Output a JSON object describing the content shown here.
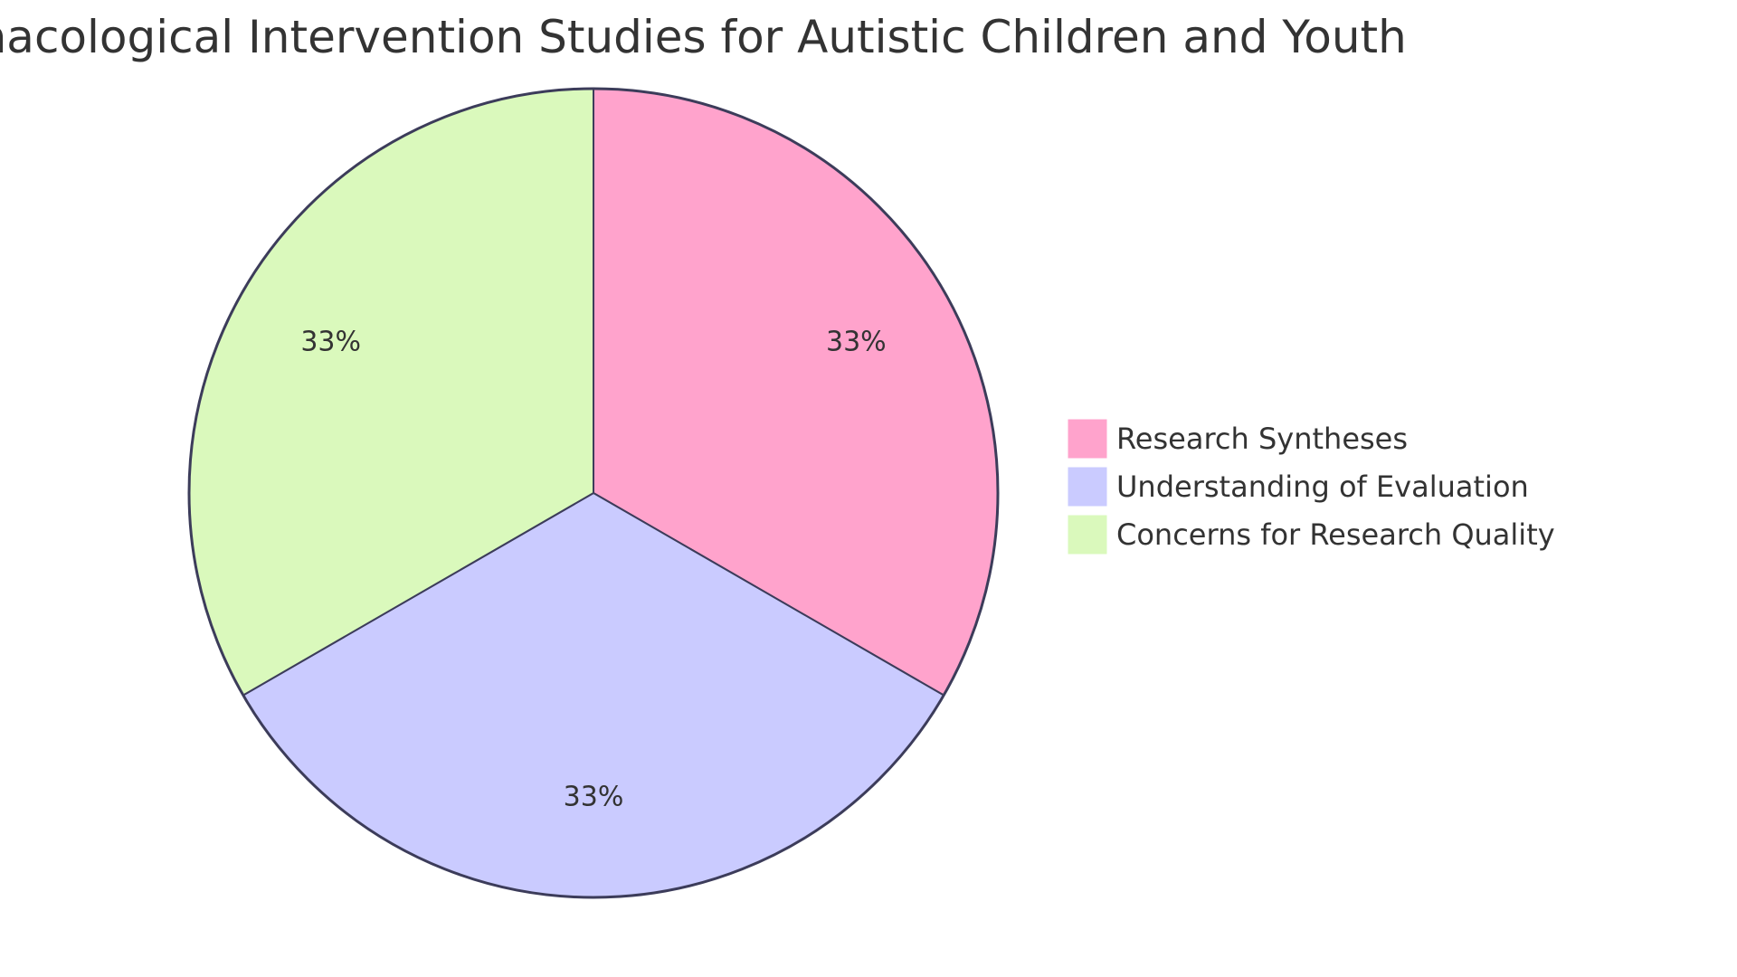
{
  "chart_data": {
    "type": "pie",
    "title": "Nonpharmacological Intervention Studies for Autistic Children and Youth",
    "categories": [
      "Research Syntheses",
      "Understanding of Evaluation",
      "Concerns for Research Quality"
    ],
    "values": [
      33.33,
      33.33,
      33.33
    ],
    "labels": [
      "33%",
      "33%",
      "33%"
    ],
    "colors": [
      "#FFA3CC",
      "#CACBFF",
      "#DAF9BC"
    ],
    "stroke_color": "#3C3C5A",
    "legend_position": "right",
    "start_angle_deg": 0,
    "direction": "clockwise"
  }
}
